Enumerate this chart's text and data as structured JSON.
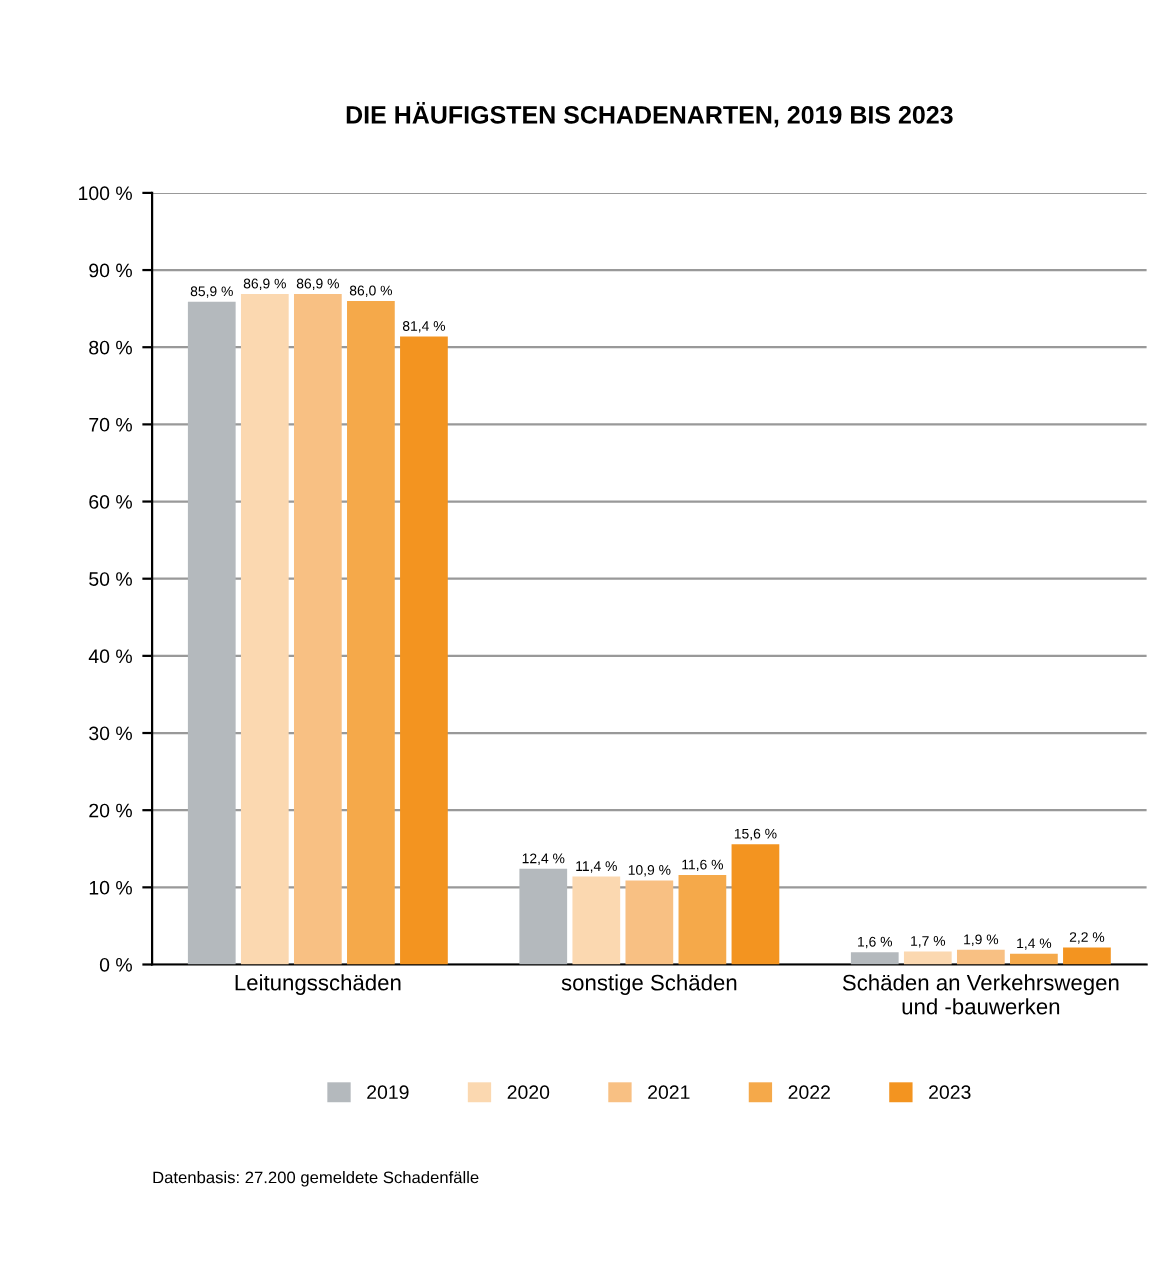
{
  "chart_data": {
    "type": "bar",
    "title": "DIE HÄUFIGSTEN SCHADENARTEN, 2019 BIS 2023",
    "categories": [
      "Leitungsschäden",
      "sonstige Schäden",
      "Schäden an Verkehrswegen\nund -bauwerken"
    ],
    "series": [
      {
        "name": "2019",
        "color": "#b4b9bd",
        "values": [
          85.9,
          12.4,
          1.6
        ],
        "value_labels": [
          "85,9 %",
          "12,4 %",
          "1,6 %"
        ]
      },
      {
        "name": "2020",
        "color": "#fbd8b0",
        "values": [
          86.9,
          11.4,
          1.7
        ],
        "value_labels": [
          "86,9 %",
          "11,4 %",
          "1,7 %"
        ]
      },
      {
        "name": "2021",
        "color": "#f8c083",
        "values": [
          86.9,
          10.9,
          1.9
        ],
        "value_labels": [
          "86,9 %",
          "10,9 %",
          "1,9 %"
        ]
      },
      {
        "name": "2022",
        "color": "#f5a94a",
        "values": [
          86.0,
          11.6,
          1.4
        ],
        "value_labels": [
          "86,0 %",
          "11,6 %",
          "1,4 %"
        ]
      },
      {
        "name": "2023",
        "color": "#f39420",
        "values": [
          81.4,
          15.6,
          2.2
        ],
        "value_labels": [
          "81,4 %",
          "15,6 %",
          "2,2 %"
        ]
      }
    ],
    "ylim": [
      0,
      100
    ],
    "yticks": [
      {
        "value": 0,
        "label": "0 %"
      },
      {
        "value": 10,
        "label": "10 %"
      },
      {
        "value": 20,
        "label": "20 %"
      },
      {
        "value": 30,
        "label": "30 %"
      },
      {
        "value": 40,
        "label": "40 %"
      },
      {
        "value": 50,
        "label": "50 %"
      },
      {
        "value": 60,
        "label": "60 %"
      },
      {
        "value": 70,
        "label": "70 %"
      },
      {
        "value": 80,
        "label": "80 %"
      },
      {
        "value": 90,
        "label": "90 %"
      },
      {
        "value": 100,
        "label": "100 %"
      }
    ],
    "grid": "y",
    "legend": "bottom",
    "annotations": [
      "Datenbasis: 27.200 gemeldete Schadenfälle"
    ]
  }
}
